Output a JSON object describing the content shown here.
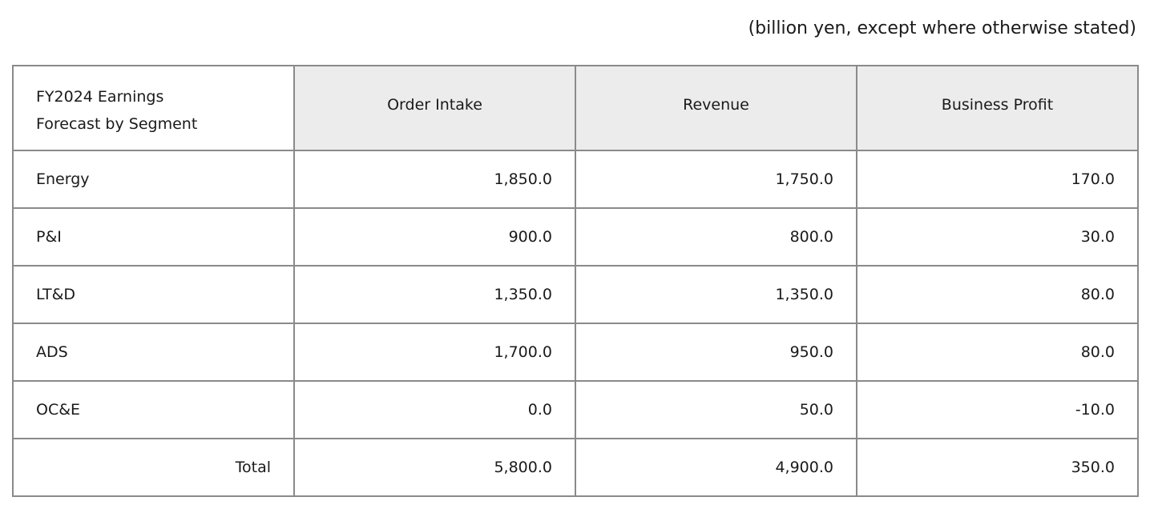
{
  "unit_note": "(billion yen, except where otherwise stated)",
  "table": {
    "corner_line1": "FY2024 Earnings",
    "corner_line2": "Forecast by Segment",
    "headers": [
      "Order Intake",
      "Revenue",
      "Business Profit"
    ],
    "rows": [
      {
        "segment": "Energy",
        "values": [
          "1,850.0",
          "1,750.0",
          "170.0"
        ]
      },
      {
        "segment": "P&I",
        "values": [
          "900.0",
          "800.0",
          "30.0"
        ]
      },
      {
        "segment": "LT&D",
        "values": [
          "1,350.0",
          "1,350.0",
          "80.0"
        ]
      },
      {
        "segment": "ADS",
        "values": [
          "1,700.0",
          "950.0",
          "80.0"
        ]
      },
      {
        "segment": "OC&E",
        "values": [
          "0.0",
          "50.0",
          "-10.0"
        ]
      },
      {
        "segment": "Total",
        "values": [
          "5,800.0",
          "4,900.0",
          "350.0"
        ]
      }
    ]
  }
}
